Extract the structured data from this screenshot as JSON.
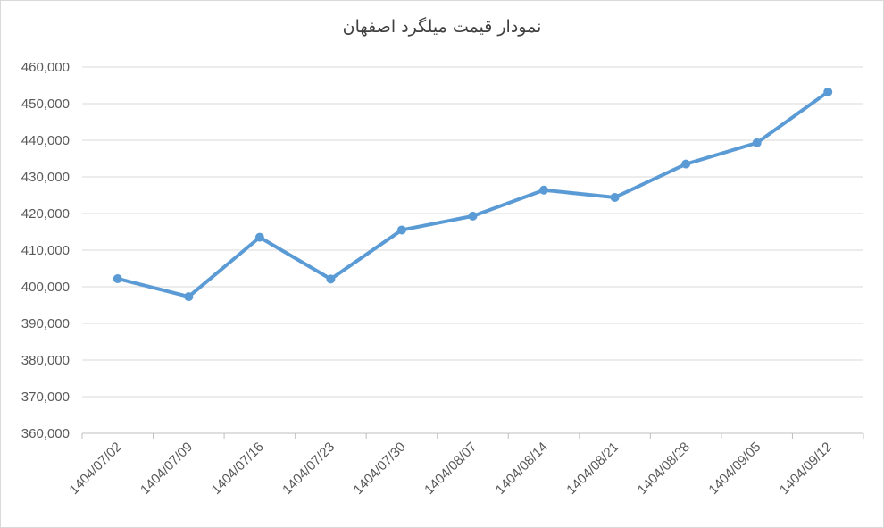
{
  "chart_data": {
    "type": "line",
    "title": "نمودار قیمت میلگرد اصفهان",
    "xlabel": "",
    "ylabel": "",
    "categories": [
      "1404/07/02",
      "1404/07/09",
      "1404/07/16",
      "1404/07/23",
      "1404/07/30",
      "1404/08/07",
      "1404/08/14",
      "1404/08/21",
      "1404/08/28",
      "1404/09/05",
      "1404/09/12"
    ],
    "series": [
      {
        "values": [
          402200,
          397300,
          413500,
          402100,
          415500,
          419300,
          426400,
          424400,
          433500,
          439300,
          453200
        ]
      }
    ],
    "ylim": [
      360000,
      460000
    ],
    "yticks": [
      360000,
      370000,
      380000,
      390000,
      400000,
      410000,
      420000,
      430000,
      440000,
      450000,
      460000
    ],
    "ytick_labels": [
      "360,000",
      "370,000",
      "380,000",
      "390,000",
      "400,000",
      "410,000",
      "420,000",
      "430,000",
      "440,000",
      "450,000",
      "460,000"
    ],
    "grid": true,
    "colors": {
      "line": "#5b9bd5",
      "grid": "#d9d9d9",
      "axis": "#bfbfbf"
    }
  }
}
